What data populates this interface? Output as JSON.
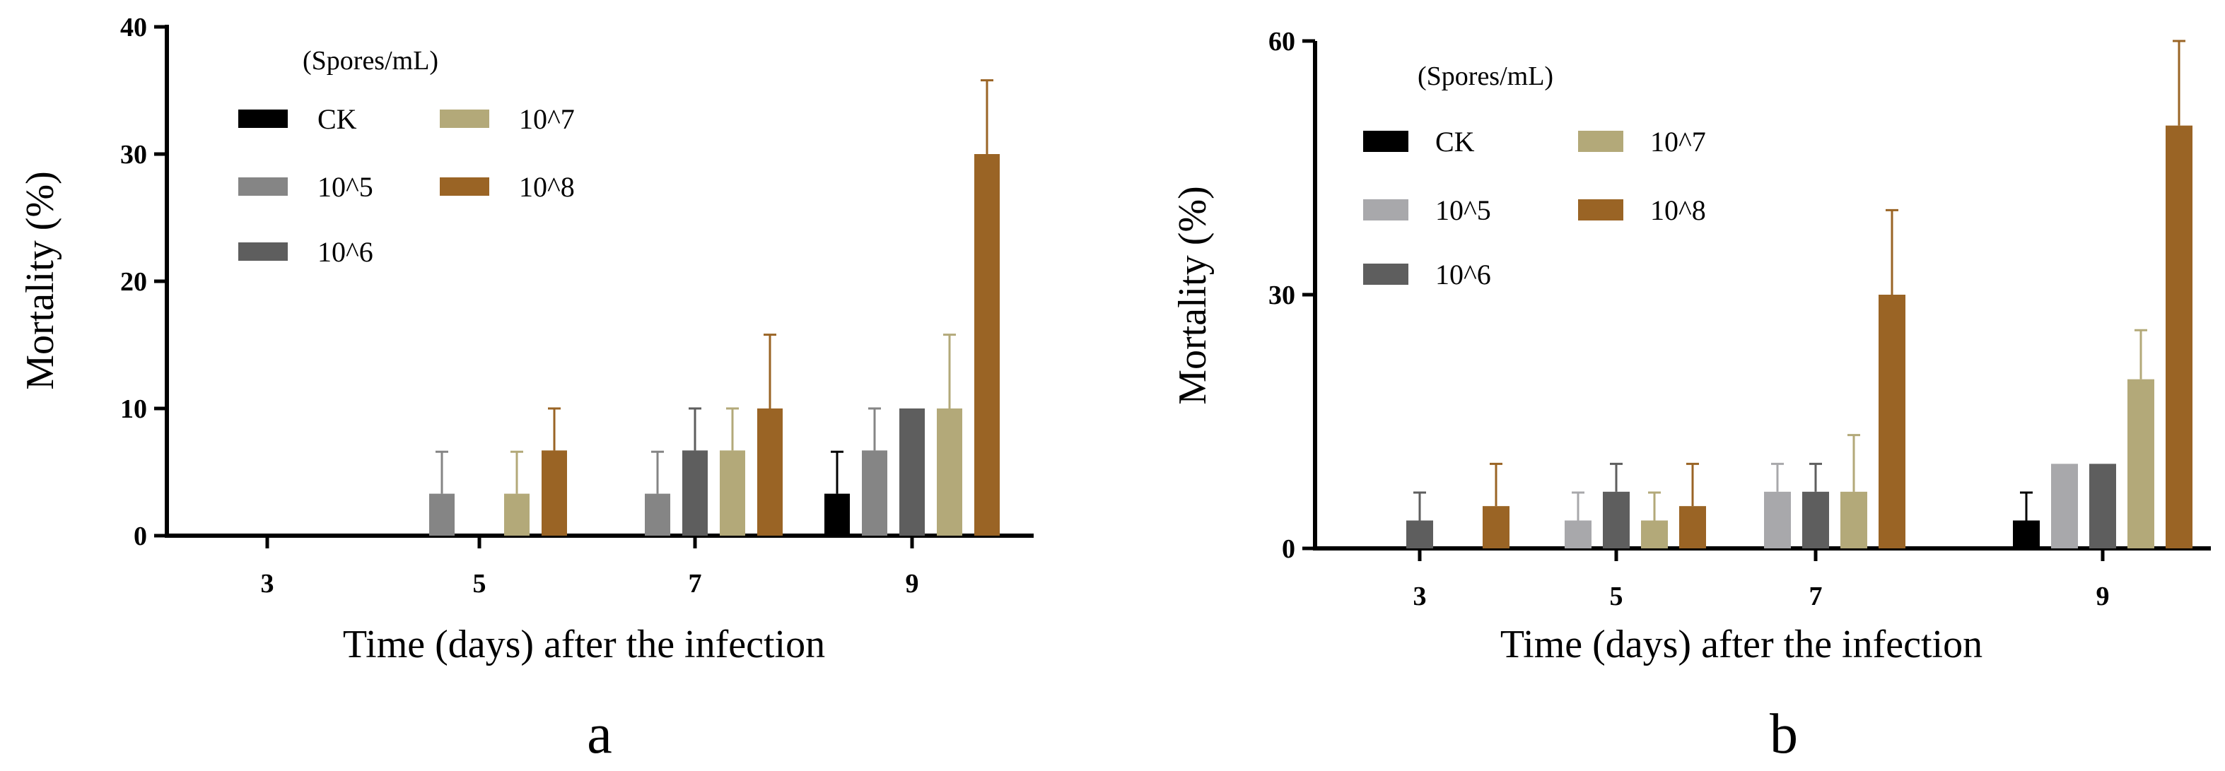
{
  "chart_data": [
    {
      "type": "bar",
      "panel_label": "a",
      "title": "",
      "xlabel": "Time (days) after the infection",
      "ylabel": "Mortality (%)",
      "categories": [
        "3",
        "5",
        "7",
        "9"
      ],
      "ylim": [
        0,
        40
      ],
      "yticks": [
        "0",
        "10",
        "20",
        "30",
        "40"
      ],
      "legend_title": "(Spores/mL)",
      "legend_placement": "top-left",
      "error_bars": true,
      "series": [
        {
          "name": "CK",
          "color": "#000000",
          "values": [
            0,
            0,
            0,
            3.3
          ],
          "errors": [
            0,
            0,
            0,
            3.3
          ]
        },
        {
          "name": "10^5",
          "color": "#858585",
          "values": [
            0,
            3.3,
            3.3,
            6.7
          ],
          "errors": [
            0,
            3.3,
            3.3,
            3.3
          ]
        },
        {
          "name": "10^6",
          "color": "#5e5e5e",
          "values": [
            0,
            0,
            6.7,
            10
          ],
          "errors": [
            0,
            0,
            3.3,
            0
          ]
        },
        {
          "name": "10^7",
          "color": "#b3a979",
          "values": [
            0,
            3.3,
            6.7,
            10
          ],
          "errors": [
            0,
            3.3,
            3.3,
            5.8
          ]
        },
        {
          "name": "10^8",
          "color": "#9a6425",
          "values": [
            0,
            6.7,
            10,
            30
          ],
          "errors": [
            0,
            3.3,
            5.8,
            5.8
          ]
        }
      ]
    },
    {
      "type": "bar",
      "panel_label": "b",
      "title": "",
      "xlabel": "Time (days) after the infection",
      "ylabel": "Mortality (%)",
      "categories": [
        "3",
        "5",
        "7",
        "9"
      ],
      "ylim": [
        0,
        60
      ],
      "yticks": [
        "0",
        "30",
        "60"
      ],
      "legend_title": "(Spores/mL)",
      "legend_placement": "top-left",
      "error_bars": true,
      "series": [
        {
          "name": "CK",
          "color": "#000000",
          "values": [
            0,
            0,
            0,
            3.3
          ],
          "errors": [
            0,
            0,
            0,
            3.3
          ]
        },
        {
          "name": "10^5",
          "color": "#a8a8ab",
          "values": [
            0,
            3.3,
            6.7,
            10
          ],
          "errors": [
            0,
            3.3,
            3.3,
            0
          ]
        },
        {
          "name": "10^6",
          "color": "#5e5e5e",
          "values": [
            3.3,
            6.7,
            6.7,
            10
          ],
          "errors": [
            3.3,
            3.3,
            3.3,
            0
          ]
        },
        {
          "name": "10^7",
          "color": "#b3a979",
          "values": [
            0,
            3.3,
            6.7,
            20
          ],
          "errors": [
            0,
            3.3,
            6.7,
            5.8
          ]
        },
        {
          "name": "10^8",
          "color": "#9a6425",
          "values": [
            5,
            5,
            30,
            50
          ],
          "errors": [
            5,
            5,
            10,
            10
          ]
        }
      ]
    }
  ]
}
